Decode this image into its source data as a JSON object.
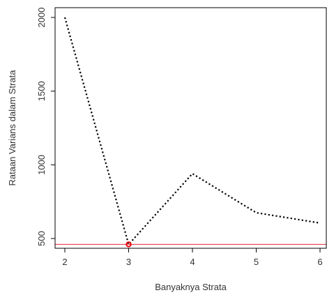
{
  "chart_data": {
    "type": "line",
    "title": "",
    "xlabel": "Banyaknya Strata",
    "ylabel": "Rataan Varians dalam Strata",
    "xlim": [
      2,
      6
    ],
    "ylim": [
      500,
      2000
    ],
    "x_ticks": [
      "2",
      "3",
      "4",
      "5",
      "6"
    ],
    "y_ticks": [
      "500",
      "1000",
      "1500",
      "2000"
    ],
    "grid": false,
    "legend": "none",
    "series": [
      {
        "x": [
          2,
          3,
          4,
          5,
          6
        ],
        "values": [
          2000,
          460,
          940,
          675,
          605
        ],
        "line_style": "dotted",
        "color": "#000000"
      }
    ],
    "highlight_point": {
      "x": 3,
      "y": 460,
      "color": "#e8000b"
    },
    "reference_line": {
      "orientation": "horizontal",
      "y": 460,
      "color": "#e8414b"
    }
  }
}
